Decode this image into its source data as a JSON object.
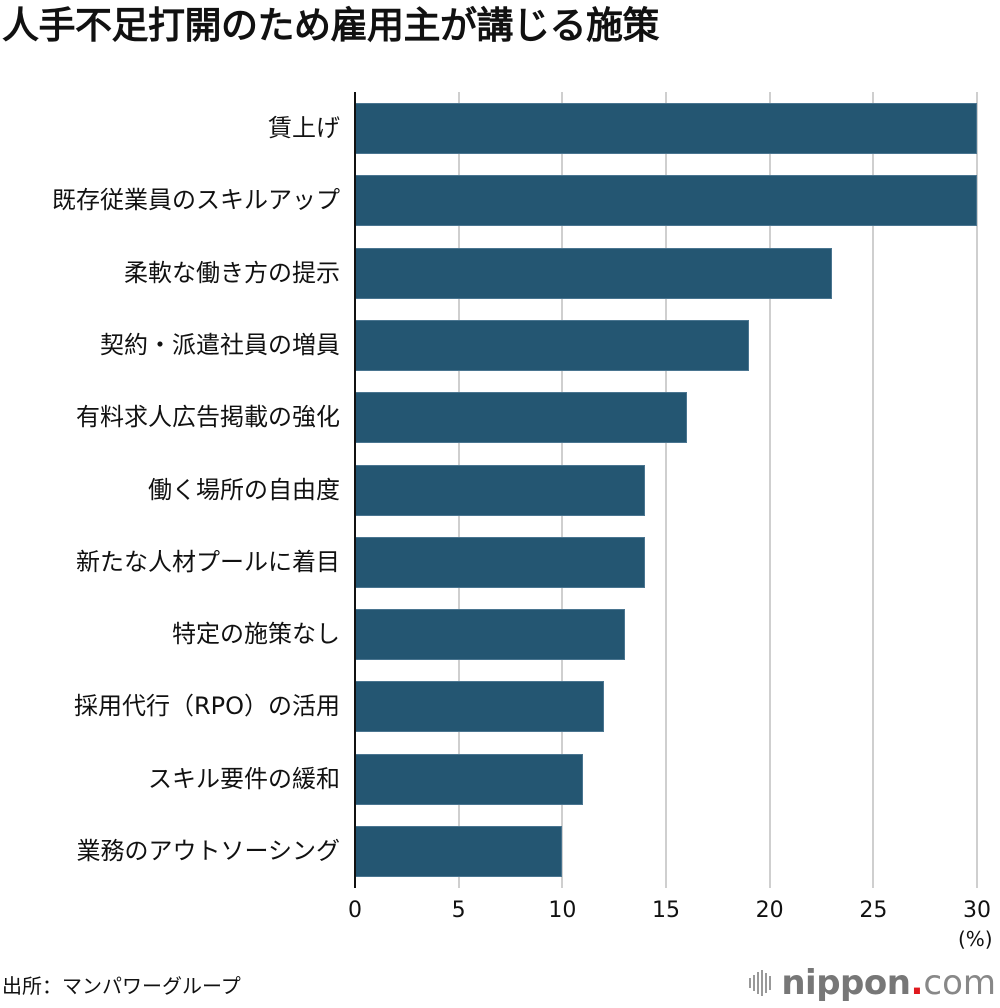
{
  "title": "人手不足打開のため雇用主が講じる施策",
  "axis": {
    "ticks": [
      "0",
      "5",
      "10",
      "15",
      "20",
      "25",
      "30"
    ],
    "unit": "(%)"
  },
  "source": "出所：マンパワーグループ",
  "logo": {
    "brand": "nippon",
    "dot": ".",
    "tld": "com",
    "dot_color": "#e0191e"
  },
  "colors": {
    "bar": "#245672",
    "grid": "#cfcfcf",
    "axis": "#111111"
  },
  "chart_data": {
    "type": "bar",
    "orientation": "horizontal",
    "title": "人手不足打開のため雇用主が講じる施策",
    "xlabel": "(%)",
    "ylabel": "",
    "xlim": [
      0,
      30
    ],
    "xticks": [
      0,
      5,
      10,
      15,
      20,
      25,
      30
    ],
    "grid": true,
    "legend": null,
    "categories": [
      "賃上げ",
      "既存従業員のスキルアップ",
      "柔軟な働き方の提示",
      "契約・派遣社員の増員",
      "有料求人広告掲載の強化",
      "働く場所の自由度",
      "新たな人材プールに着目",
      "特定の施策なし",
      "採用代行（RPO）の活用",
      "スキル要件の緩和",
      "業務のアウトソーシング"
    ],
    "values": [
      30,
      30,
      23,
      19,
      16,
      14,
      14,
      13,
      12,
      11,
      10
    ],
    "source": "出所：マンパワーグループ"
  }
}
